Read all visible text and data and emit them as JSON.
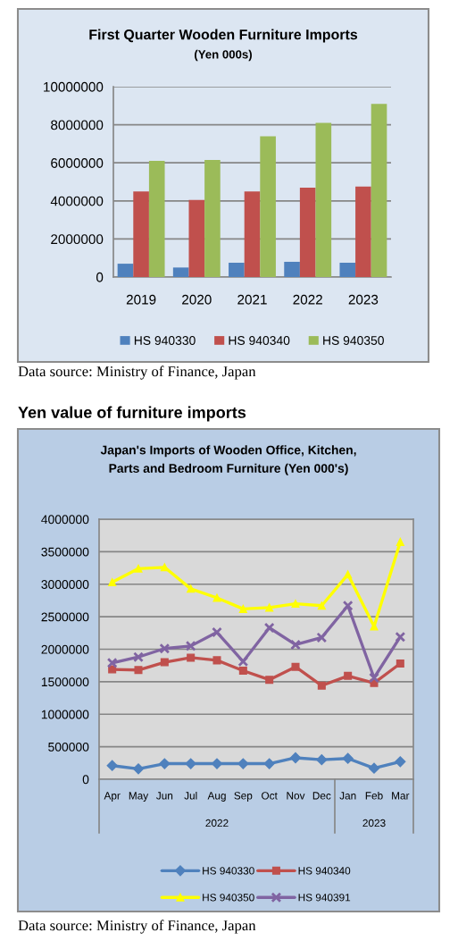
{
  "chart_data": [
    {
      "type": "bar",
      "title": "First Quarter Wooden Furniture Imports",
      "subtitle": "(Yen 000s)",
      "categories": [
        "2019",
        "2020",
        "2021",
        "2022",
        "2023"
      ],
      "series": [
        {
          "name": "HS 940330",
          "color": "#4f81bd",
          "values": [
            700000,
            500000,
            750000,
            800000,
            750000
          ]
        },
        {
          "name": "HS 940340",
          "color": "#c0504d",
          "values": [
            4500000,
            4050000,
            4500000,
            4700000,
            4750000
          ]
        },
        {
          "name": "HS 940350",
          "color": "#9bbb59",
          "values": [
            6100000,
            6150000,
            7400000,
            8100000,
            9100000
          ]
        }
      ],
      "ylim": [
        0,
        10000000
      ],
      "yticks": [
        0,
        2000000,
        4000000,
        6000000,
        8000000,
        10000000
      ],
      "grid": "y",
      "legend": "bottom",
      "annotations": [
        "Data source: Ministry of Finance, Japan"
      ]
    },
    {
      "type": "line",
      "title": "Yen value of furniture imports",
      "subtitle": "Japan's Imports of Wooden Office, Kitchen,\nParts and Bedroom Furniture (Yen 000's)",
      "categories": [
        "Apr",
        "May",
        "Jun",
        "Jul",
        "Aug",
        "Sep",
        "Oct",
        "Nov",
        "Dec",
        "Jan",
        "Feb",
        "Mar"
      ],
      "series": [
        {
          "name": "HS 940330",
          "color": "#4f81bd",
          "marker": "diamond",
          "values": [
            210000,
            160000,
            240000,
            240000,
            240000,
            240000,
            240000,
            330000,
            300000,
            320000,
            170000,
            270000
          ]
        },
        {
          "name": "HS 940340",
          "color": "#c0504d",
          "marker": "square",
          "values": [
            1690000,
            1680000,
            1800000,
            1870000,
            1830000,
            1670000,
            1530000,
            1730000,
            1440000,
            1590000,
            1480000,
            1780000
          ]
        },
        {
          "name": "HS 940350",
          "color": "#ffff00",
          "marker": "triangle",
          "values": [
            3030000,
            3240000,
            3260000,
            2930000,
            2790000,
            2620000,
            2640000,
            2700000,
            2670000,
            3150000,
            2350000,
            3650000
          ]
        },
        {
          "name": "HS 940391",
          "color": "#8064a2",
          "marker": "cross",
          "values": [
            1790000,
            1880000,
            2010000,
            2050000,
            2260000,
            1810000,
            2330000,
            2070000,
            2180000,
            2670000,
            1560000,
            2190000
          ]
        }
      ],
      "ylim": [
        0,
        4000000
      ],
      "yticks": [
        0,
        500000,
        1000000,
        1500000,
        2000000,
        2500000,
        3000000,
        3500000,
        4000000
      ],
      "grid": "y",
      "legend": "bottom",
      "annotations": [
        "2022",
        "2023",
        "Data source: Ministry of Finance, Japan"
      ]
    }
  ]
}
